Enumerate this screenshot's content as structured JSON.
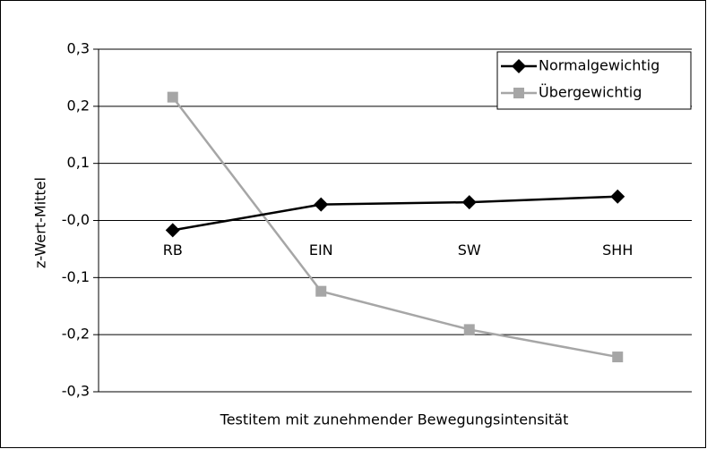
{
  "chart_data": {
    "type": "line",
    "x_label": "Testitem mit zunehmender Bewegungsintensität",
    "y_label": "z-Wert-Mittel",
    "categories": [
      "RB",
      "EIN",
      "SW",
      "SHH"
    ],
    "series": [
      {
        "name": "Normalgewichtig",
        "color": "#000000",
        "marker": "diamond",
        "values": [
          -0.017,
          0.028,
          0.032,
          0.042
        ]
      },
      {
        "name": "Übergewichtig",
        "color": "#a6a6a6",
        "marker": "square",
        "values": [
          0.216,
          -0.124,
          -0.191,
          -0.239
        ]
      }
    ],
    "ylim": [
      -0.3,
      0.3
    ],
    "yticks": [
      {
        "value": -0.3,
        "label": "-0,3"
      },
      {
        "value": -0.2,
        "label": "-0,2"
      },
      {
        "value": -0.1,
        "label": "-0,1"
      },
      {
        "value": 0,
        "label": "-0,0"
      },
      {
        "value": 0.1,
        "label": "0,1"
      },
      {
        "value": 0.2,
        "label": "0,2"
      },
      {
        "value": 0.3,
        "label": "0,3"
      }
    ],
    "grid": true,
    "legend": "top-right"
  }
}
